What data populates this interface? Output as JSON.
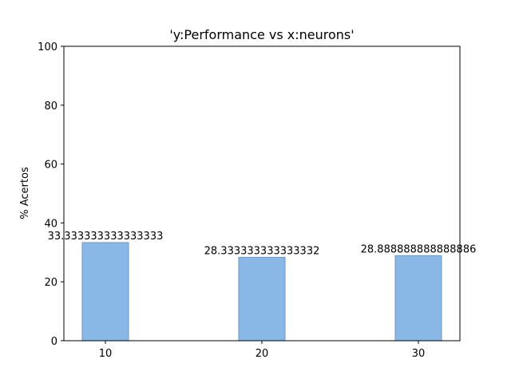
{
  "chart_data": {
    "type": "bar",
    "title": "'y:Performance vs x:neurons'",
    "xlabel": "",
    "ylabel": "% Acertos",
    "categories": [
      "10",
      "20",
      "30"
    ],
    "values": [
      33.333333333333336,
      28.333333333333332,
      28.888888888888886
    ],
    "data_labels": [
      "33.333333333333333",
      "28.333333333333332",
      "28.888888888888886"
    ],
    "ylim": [
      0,
      100
    ],
    "yticks": [
      "0",
      "20",
      "40",
      "60",
      "80",
      "100"
    ],
    "ytick_values": [
      0,
      20,
      40,
      60,
      80,
      100
    ],
    "bar_color": "#8ab8e6",
    "bar_edge_color": "#6d96c8",
    "grid": false,
    "legend": "none"
  }
}
